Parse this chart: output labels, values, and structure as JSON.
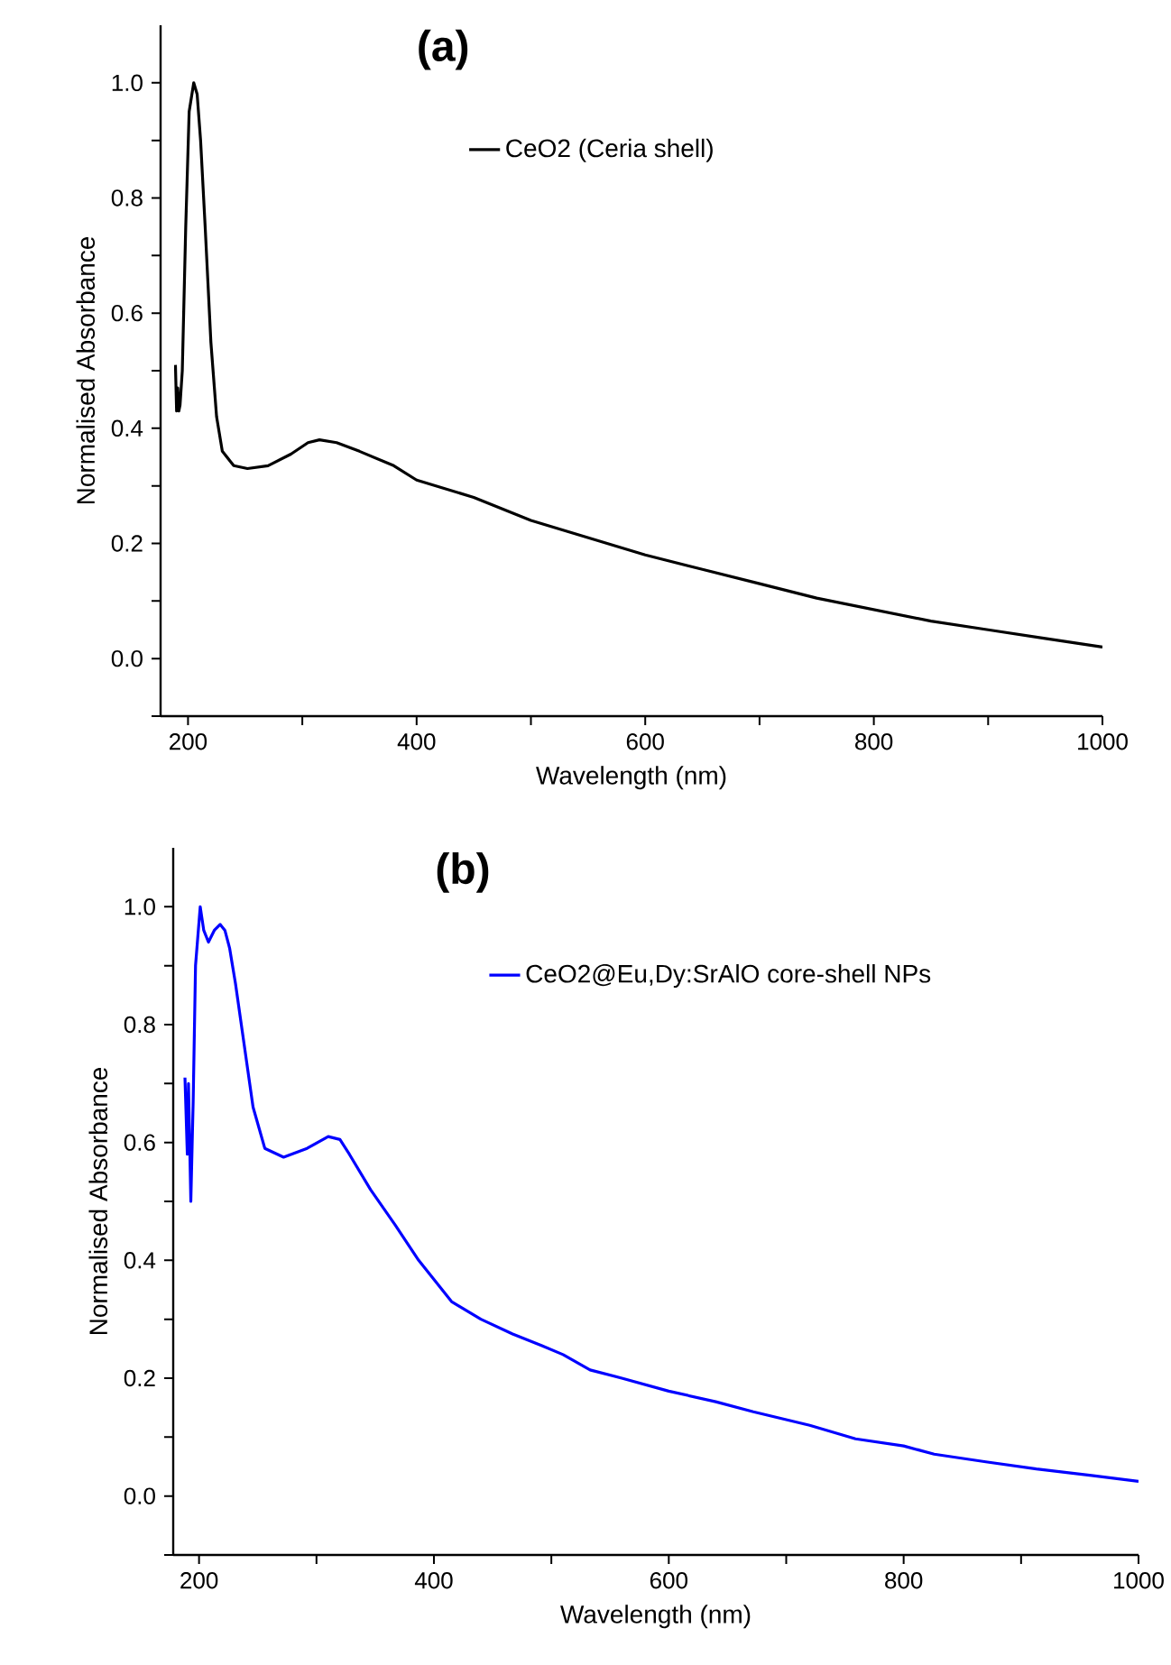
{
  "chart_data": [
    {
      "type": "line",
      "title": "(a)",
      "xlabel": "Wavelength (nm)",
      "ylabel": "Normalised Absorbance",
      "legend": "top",
      "grid": false,
      "xlim": [
        176,
        1000
      ],
      "ylim": [
        -0.1,
        1.1
      ],
      "xticks": [
        200,
        {
          "value": 300,
          "label": null
        },
        400,
        {
          "value": 500,
          "label": null
        },
        600,
        {
          "value": 700,
          "label": null
        },
        800,
        {
          "value": 900,
          "label": null
        },
        1000
      ],
      "yticks": [
        {
          "value": -0.1,
          "label": null
        },
        {
          "value": 0,
          "label": "0.0"
        },
        {
          "value": 0.1,
          "label": null
        },
        {
          "value": 0.2,
          "label": "0.2"
        },
        {
          "value": 0.3,
          "label": null
        },
        {
          "value": 0.4,
          "label": "0.4"
        },
        {
          "value": 0.5,
          "label": null
        },
        {
          "value": 0.6,
          "label": "0.6"
        },
        {
          "value": 0.7,
          "label": null
        },
        {
          "value": 0.8,
          "label": "0.8"
        },
        {
          "value": 0.9,
          "label": null
        },
        {
          "value": 1.0,
          "label": "1.0"
        }
      ],
      "series": [
        {
          "name": "CeO2 (Ceria shell)",
          "color": "#000000",
          "x": [
            189,
            190,
            191,
            192,
            193,
            195,
            198,
            201,
            205,
            208,
            211,
            215,
            220,
            225,
            230,
            240,
            252,
            270,
            290,
            305,
            315,
            330,
            350,
            380,
            400,
            450,
            500,
            550,
            600,
            650,
            700,
            750,
            800,
            850,
            900,
            950,
            1000
          ],
          "values": [
            0.51,
            0.43,
            0.47,
            0.43,
            0.44,
            0.5,
            0.75,
            0.95,
            1.0,
            0.98,
            0.9,
            0.75,
            0.55,
            0.42,
            0.36,
            0.335,
            0.33,
            0.335,
            0.355,
            0.375,
            0.38,
            0.375,
            0.36,
            0.335,
            0.31,
            0.28,
            0.24,
            0.21,
            0.18,
            0.155,
            0.13,
            0.105,
            0.085,
            0.065,
            0.05,
            0.035,
            0.02
          ]
        }
      ]
    },
    {
      "type": "line",
      "title": "(b)",
      "xlabel": "Wavelength (nm)",
      "ylabel": "Normalised Absorbance",
      "legend": "top",
      "grid": false,
      "xlim": [
        178,
        1000
      ],
      "ylim": [
        -0.1,
        1.1
      ],
      "xticks": [
        200,
        {
          "value": 300,
          "label": null
        },
        400,
        {
          "value": 500,
          "label": null
        },
        600,
        {
          "value": 700,
          "label": null
        },
        800,
        {
          "value": 900,
          "label": null
        },
        1000
      ],
      "yticks": [
        {
          "value": -0.1,
          "label": null
        },
        {
          "value": 0,
          "label": "0.0"
        },
        {
          "value": 0.1,
          "label": null
        },
        {
          "value": 0.2,
          "label": "0.2"
        },
        {
          "value": 0.3,
          "label": null
        },
        {
          "value": 0.4,
          "label": "0.4"
        },
        {
          "value": 0.5,
          "label": null
        },
        {
          "value": 0.6,
          "label": "0.6"
        },
        {
          "value": 0.7,
          "label": null
        },
        {
          "value": 0.8,
          "label": "0.8"
        },
        {
          "value": 0.9,
          "label": null
        },
        {
          "value": 1.0,
          "label": "1.0"
        }
      ],
      "series": [
        {
          "name": "CeO2@Eu,Dy:SrAlO core-shell NPs",
          "color": "#0000ff",
          "x": [
            188,
            190,
            191,
            193,
            195,
            197,
            201,
            204,
            208,
            213,
            218,
            222,
            226,
            231,
            236,
            241,
            246,
            256,
            272,
            292,
            310,
            320,
            328,
            346,
            367,
            387,
            415,
            440,
            467,
            492,
            510,
            533,
            560,
            600,
            640,
            672,
            720,
            759,
            800,
            826,
            870,
            913,
            960,
            1000
          ],
          "values": [
            0.71,
            0.58,
            0.7,
            0.5,
            0.67,
            0.9,
            1.0,
            0.96,
            0.94,
            0.96,
            0.97,
            0.96,
            0.93,
            0.87,
            0.8,
            0.73,
            0.66,
            0.59,
            0.575,
            0.59,
            0.61,
            0.605,
            0.58,
            0.52,
            0.46,
            0.4,
            0.33,
            0.3,
            0.275,
            0.255,
            0.24,
            0.214,
            0.2,
            0.178,
            0.16,
            0.143,
            0.12,
            0.097,
            0.085,
            0.071,
            0.058,
            0.046,
            0.035,
            0.025
          ]
        }
      ]
    }
  ]
}
